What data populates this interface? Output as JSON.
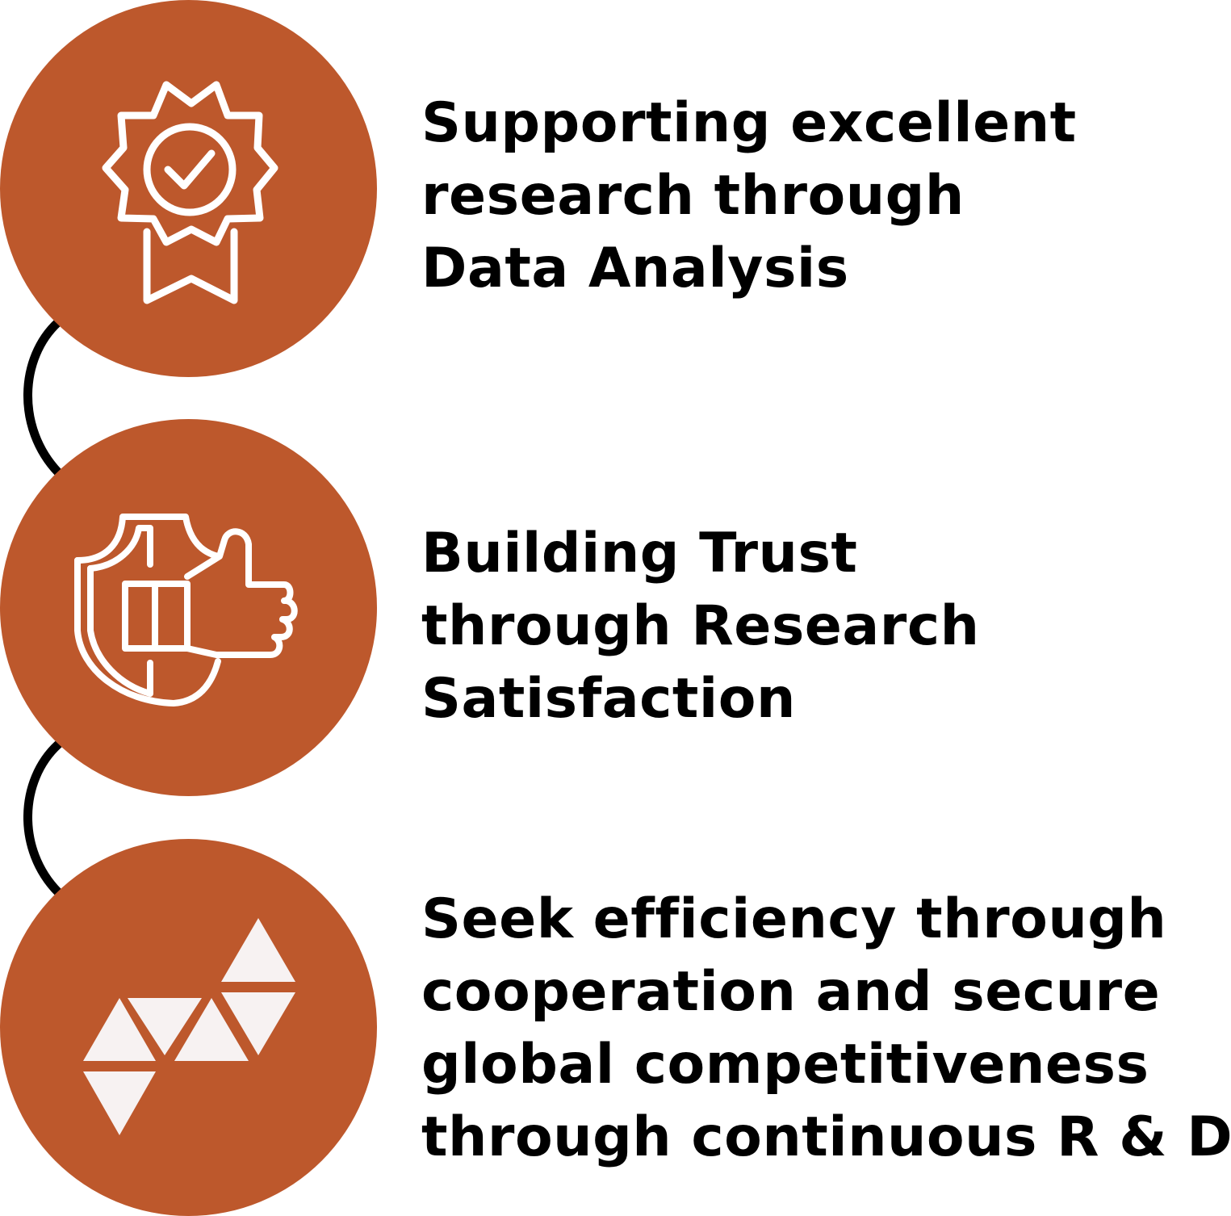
{
  "colors": {
    "circle_fill": "#bd582c",
    "icon_stroke": "#ffffff",
    "icon_fill": "#f7f2f2",
    "connector": "#000000",
    "text": "#000000"
  },
  "items": [
    {
      "icon": "award-badge-icon",
      "lines": [
        "Supporting excellent",
        "research through",
        "Data Analysis"
      ]
    },
    {
      "icon": "shield-thumbs-up-icon",
      "lines": [
        "Building Trust",
        "through Research",
        "Satisfaction"
      ]
    },
    {
      "icon": "triangles-icon",
      "lines": [
        "Seek efficiency through",
        "cooperation and secure",
        "global competitiveness",
        "through continuous R & D"
      ]
    }
  ]
}
